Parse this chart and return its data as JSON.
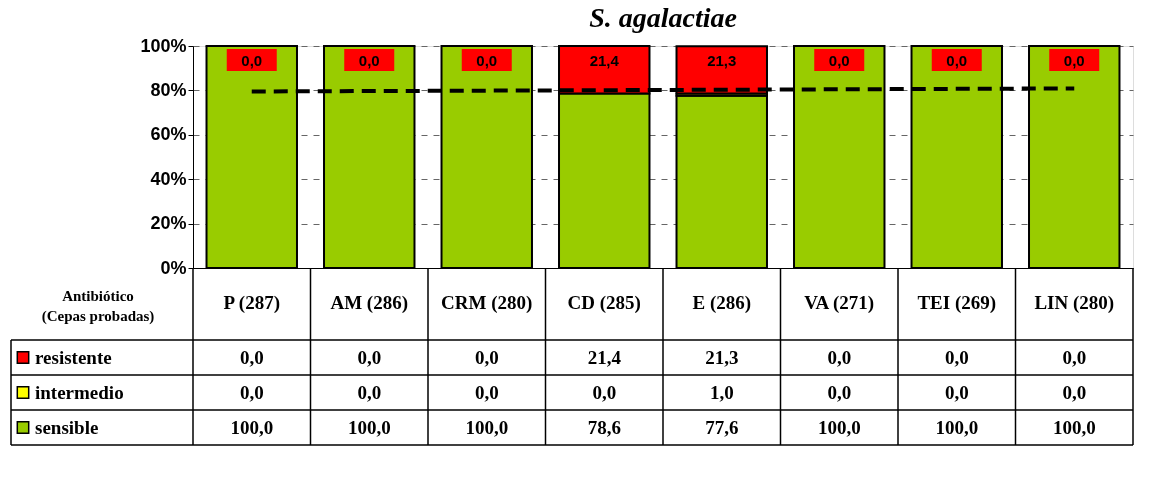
{
  "chart_data": {
    "type": "bar",
    "title": "S. agalactiae",
    "xlabel": "Antibiótico (Cepas probadas)",
    "stacked": true,
    "categories": [
      "P (287)",
      "AM (286)",
      "CRM (280)",
      "CD (285)",
      "E (286)",
      "VA (271)",
      "TEI (269)",
      "LIN (280)"
    ],
    "series": [
      {
        "name": "sensible",
        "color": "#99cc00",
        "values": [
          100.0,
          100.0,
          100.0,
          78.6,
          77.6,
          100.0,
          100.0,
          100.0
        ],
        "value_labels": [
          "100,0",
          "100,0",
          "100,0",
          "78,6",
          "77,6",
          "100,0",
          "100,0",
          "100,0"
        ]
      },
      {
        "name": "intermedio",
        "color": "#ffff00",
        "values": [
          0.0,
          0.0,
          0.0,
          0.0,
          1.0,
          0.0,
          0.0,
          0.0
        ],
        "value_labels": [
          "0,0",
          "0,0",
          "0,0",
          "0,0",
          "1,0",
          "0,0",
          "0,0",
          "0,0"
        ]
      },
      {
        "name": "resistente",
        "color": "#ff0000",
        "values": [
          0.0,
          0.0,
          0.0,
          21.4,
          21.3,
          0.0,
          0.0,
          0.0
        ],
        "value_labels": [
          "0,0",
          "0,0",
          "0,0",
          "21,4",
          "21,3",
          "0,0",
          "0,0",
          "0,0"
        ]
      },
      {
        "type": "line",
        "color": "#000000",
        "line_style": "dashed",
        "marker": "none",
        "values": [
          79.5,
          79.7,
          79.9,
          80.1,
          80.3,
          80.5,
          80.7,
          80.9
        ]
      }
    ],
    "ylim": [
      0,
      100
    ],
    "yticks": [
      {
        "value": 0,
        "label": "0%"
      },
      {
        "value": 20,
        "label": "20%"
      },
      {
        "value": 40,
        "label": "40%"
      },
      {
        "value": 60,
        "label": "60%"
      },
      {
        "value": 80,
        "label": "80%"
      },
      {
        "value": 100,
        "label": "100%"
      }
    ],
    "grid": "y",
    "legend": "bottom left"
  }
}
